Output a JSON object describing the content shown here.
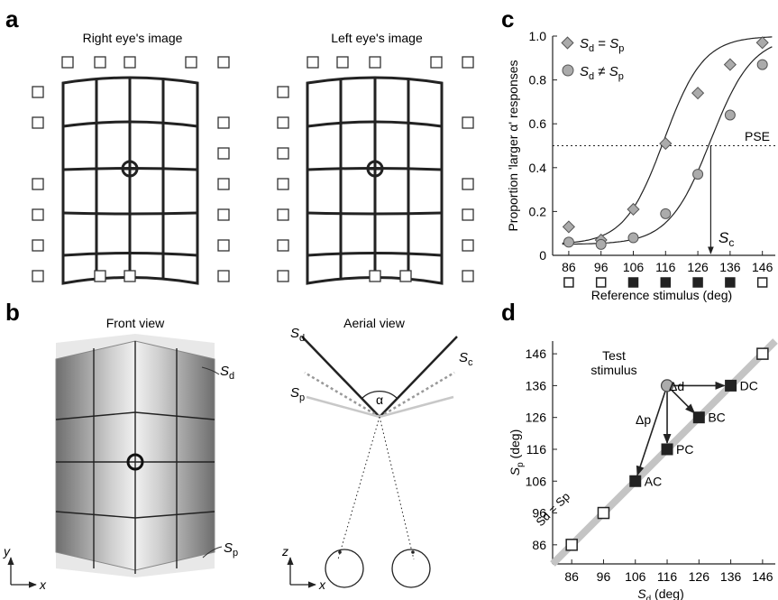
{
  "panels": {
    "a": {
      "letter": "a",
      "right_title": "Right eye's image",
      "left_title": "Left eye's image"
    },
    "b": {
      "letter": "b",
      "front_title": "Front view",
      "aerial_title": "Aerial view",
      "label_sd": "S",
      "label_sd_sub": "d",
      "label_sp": "S",
      "label_sp_sub": "p",
      "label_sc": "S",
      "label_sc_sub": "c",
      "alpha": "α",
      "axis_y": "y",
      "axis_x": "x",
      "axis_z": "z"
    },
    "c": {
      "letter": "c",
      "legend_1_lhs": "S",
      "legend_1_lhs_sub": "d",
      "legend_1_op": " = ",
      "legend_1_rhs": "S",
      "legend_1_rhs_sub": "p",
      "legend_2_lhs": "S",
      "legend_2_lhs_sub": "d",
      "legend_2_op": " ≠ ",
      "legend_2_rhs": "S",
      "legend_2_rhs_sub": "p",
      "pse_label": "PSE",
      "sc_label": "S",
      "sc_label_sub": "c"
    },
    "d": {
      "letter": "d",
      "test_label_1": "Test",
      "test_label_2": "stimulus",
      "delta_d": "Δd",
      "delta_p": "Δp",
      "diag_label": "Sd = Sp",
      "points": {
        "DC": "DC",
        "BC": "BC",
        "PC": "PC",
        "AC": "AC"
      }
    }
  },
  "chart_data": [
    {
      "type": "scatter",
      "panel": "c",
      "xlabel": "Reference stimulus  (deg)",
      "ylabel": "Proportion 'larger α' responses",
      "x_ticks": [
        86,
        96,
        106,
        116,
        126,
        136,
        146
      ],
      "y_ticks": [
        "0",
        "0.2",
        "0.4",
        "0.6",
        "0.8",
        "1.0"
      ],
      "xlim": [
        81,
        150
      ],
      "ylim": [
        0,
        1.0
      ],
      "pse_level": 0.5,
      "sc_value": 130,
      "marker_types": [
        "open",
        "open",
        "filled",
        "filled",
        "filled",
        "filled",
        "open"
      ],
      "series": [
        {
          "name": "Sd = Sp",
          "marker": "diamond",
          "x": [
            86,
            96,
            106,
            116,
            126,
            136,
            146
          ],
          "y": [
            0.13,
            0.07,
            0.21,
            0.51,
            0.74,
            0.87,
            0.97
          ]
        },
        {
          "name": "Sd ≠ Sp",
          "marker": "circle",
          "x": [
            86,
            96,
            106,
            116,
            126,
            136,
            146
          ],
          "y": [
            0.06,
            0.05,
            0.08,
            0.19,
            0.37,
            0.64,
            0.87
          ]
        }
      ],
      "fits": [
        {
          "mu": 115.5,
          "s": 6.1,
          "floor": 0.05
        },
        {
          "mu": 130,
          "s": 6.5,
          "floor": 0.05
        }
      ]
    },
    {
      "type": "scatter",
      "panel": "d",
      "xlabel": "Sd (deg)",
      "ylabel": "Sp (deg)",
      "x_ticks": [
        86,
        96,
        106,
        116,
        126,
        136,
        146
      ],
      "y_ticks": [
        86,
        96,
        106,
        116,
        126,
        136,
        146
      ],
      "xlim": [
        80,
        150
      ],
      "ylim": [
        80,
        150
      ],
      "test_stimulus": {
        "x": 116,
        "y": 136
      },
      "conflict_points": [
        {
          "label": "DC",
          "x": 136,
          "y": 136
        },
        {
          "label": "BC",
          "x": 126,
          "y": 126
        },
        {
          "label": "PC",
          "x": 116,
          "y": 116
        },
        {
          "label": "AC",
          "x": 106,
          "y": 106
        }
      ],
      "cue_consistent_points": [
        {
          "x": 86,
          "y": 86
        },
        {
          "x": 96,
          "y": 96
        },
        {
          "x": 146,
          "y": 146
        }
      ]
    }
  ]
}
